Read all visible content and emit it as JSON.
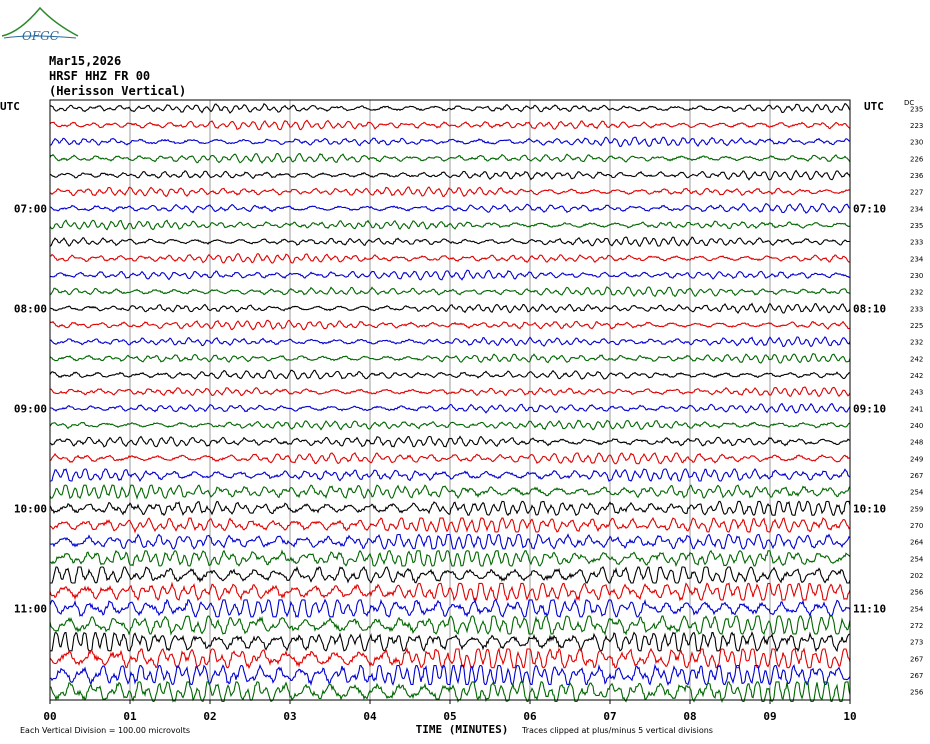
{
  "header": {
    "logo_text": "OFGC",
    "date": "Mar15,2026",
    "station": "HRSF HHZ FR 00",
    "location": "(Herisson Vertical)"
  },
  "chart_data": {
    "type": "line",
    "title": "",
    "xlabel": "TIME (MINUTES)",
    "ylabel": "",
    "xlim": [
      0,
      10
    ],
    "x_ticks": [
      "00",
      "01",
      "02",
      "03",
      "04",
      "05",
      "06",
      "07",
      "08",
      "09",
      "10"
    ],
    "left_axis_label": "UTC",
    "right_axis_label": "UTC",
    "dc_label": "DC",
    "left_hour_labels": [
      {
        "label": "07:00",
        "trace_index": 6
      },
      {
        "label": "08:00",
        "trace_index": 12
      },
      {
        "label": "09:00",
        "trace_index": 18
      },
      {
        "label": "10:00",
        "trace_index": 24
      },
      {
        "label": "11:00",
        "trace_index": 30
      }
    ],
    "right_hour_labels": [
      {
        "label": "07:10",
        "trace_index": 6
      },
      {
        "label": "08:10",
        "trace_index": 12
      },
      {
        "label": "09:10",
        "trace_index": 18
      },
      {
        "label": "10:10",
        "trace_index": 24
      },
      {
        "label": "11:10",
        "trace_index": 30
      }
    ],
    "trace_colors": [
      "#000000",
      "#e00000",
      "#0000d0",
      "#006600"
    ],
    "dc_offsets": [
      235,
      223,
      230,
      226,
      236,
      227,
      234,
      235,
      233,
      234,
      230,
      232,
      233,
      225,
      232,
      242,
      242,
      243,
      241,
      240,
      248,
      249,
      267,
      254,
      259,
      270,
      264,
      254,
      202,
      256,
      254,
      272,
      273,
      267,
      267,
      256
    ],
    "amplitude_index": [
      1,
      1,
      1,
      1,
      1,
      1,
      1,
      1,
      1,
      1,
      1,
      1,
      1,
      1,
      1,
      1,
      1,
      1,
      1,
      1,
      1.2,
      1.3,
      1.6,
      1.8,
      2,
      2,
      2.1,
      2.3,
      2.5,
      2.6,
      2.7,
      2.9,
      3,
      3.1,
      3.2,
      3.3
    ],
    "footer_left": "Each Vertical Division =  100.00 microvolts",
    "footer_right": "Traces clipped at plus/minus 5 vertical divisions"
  }
}
